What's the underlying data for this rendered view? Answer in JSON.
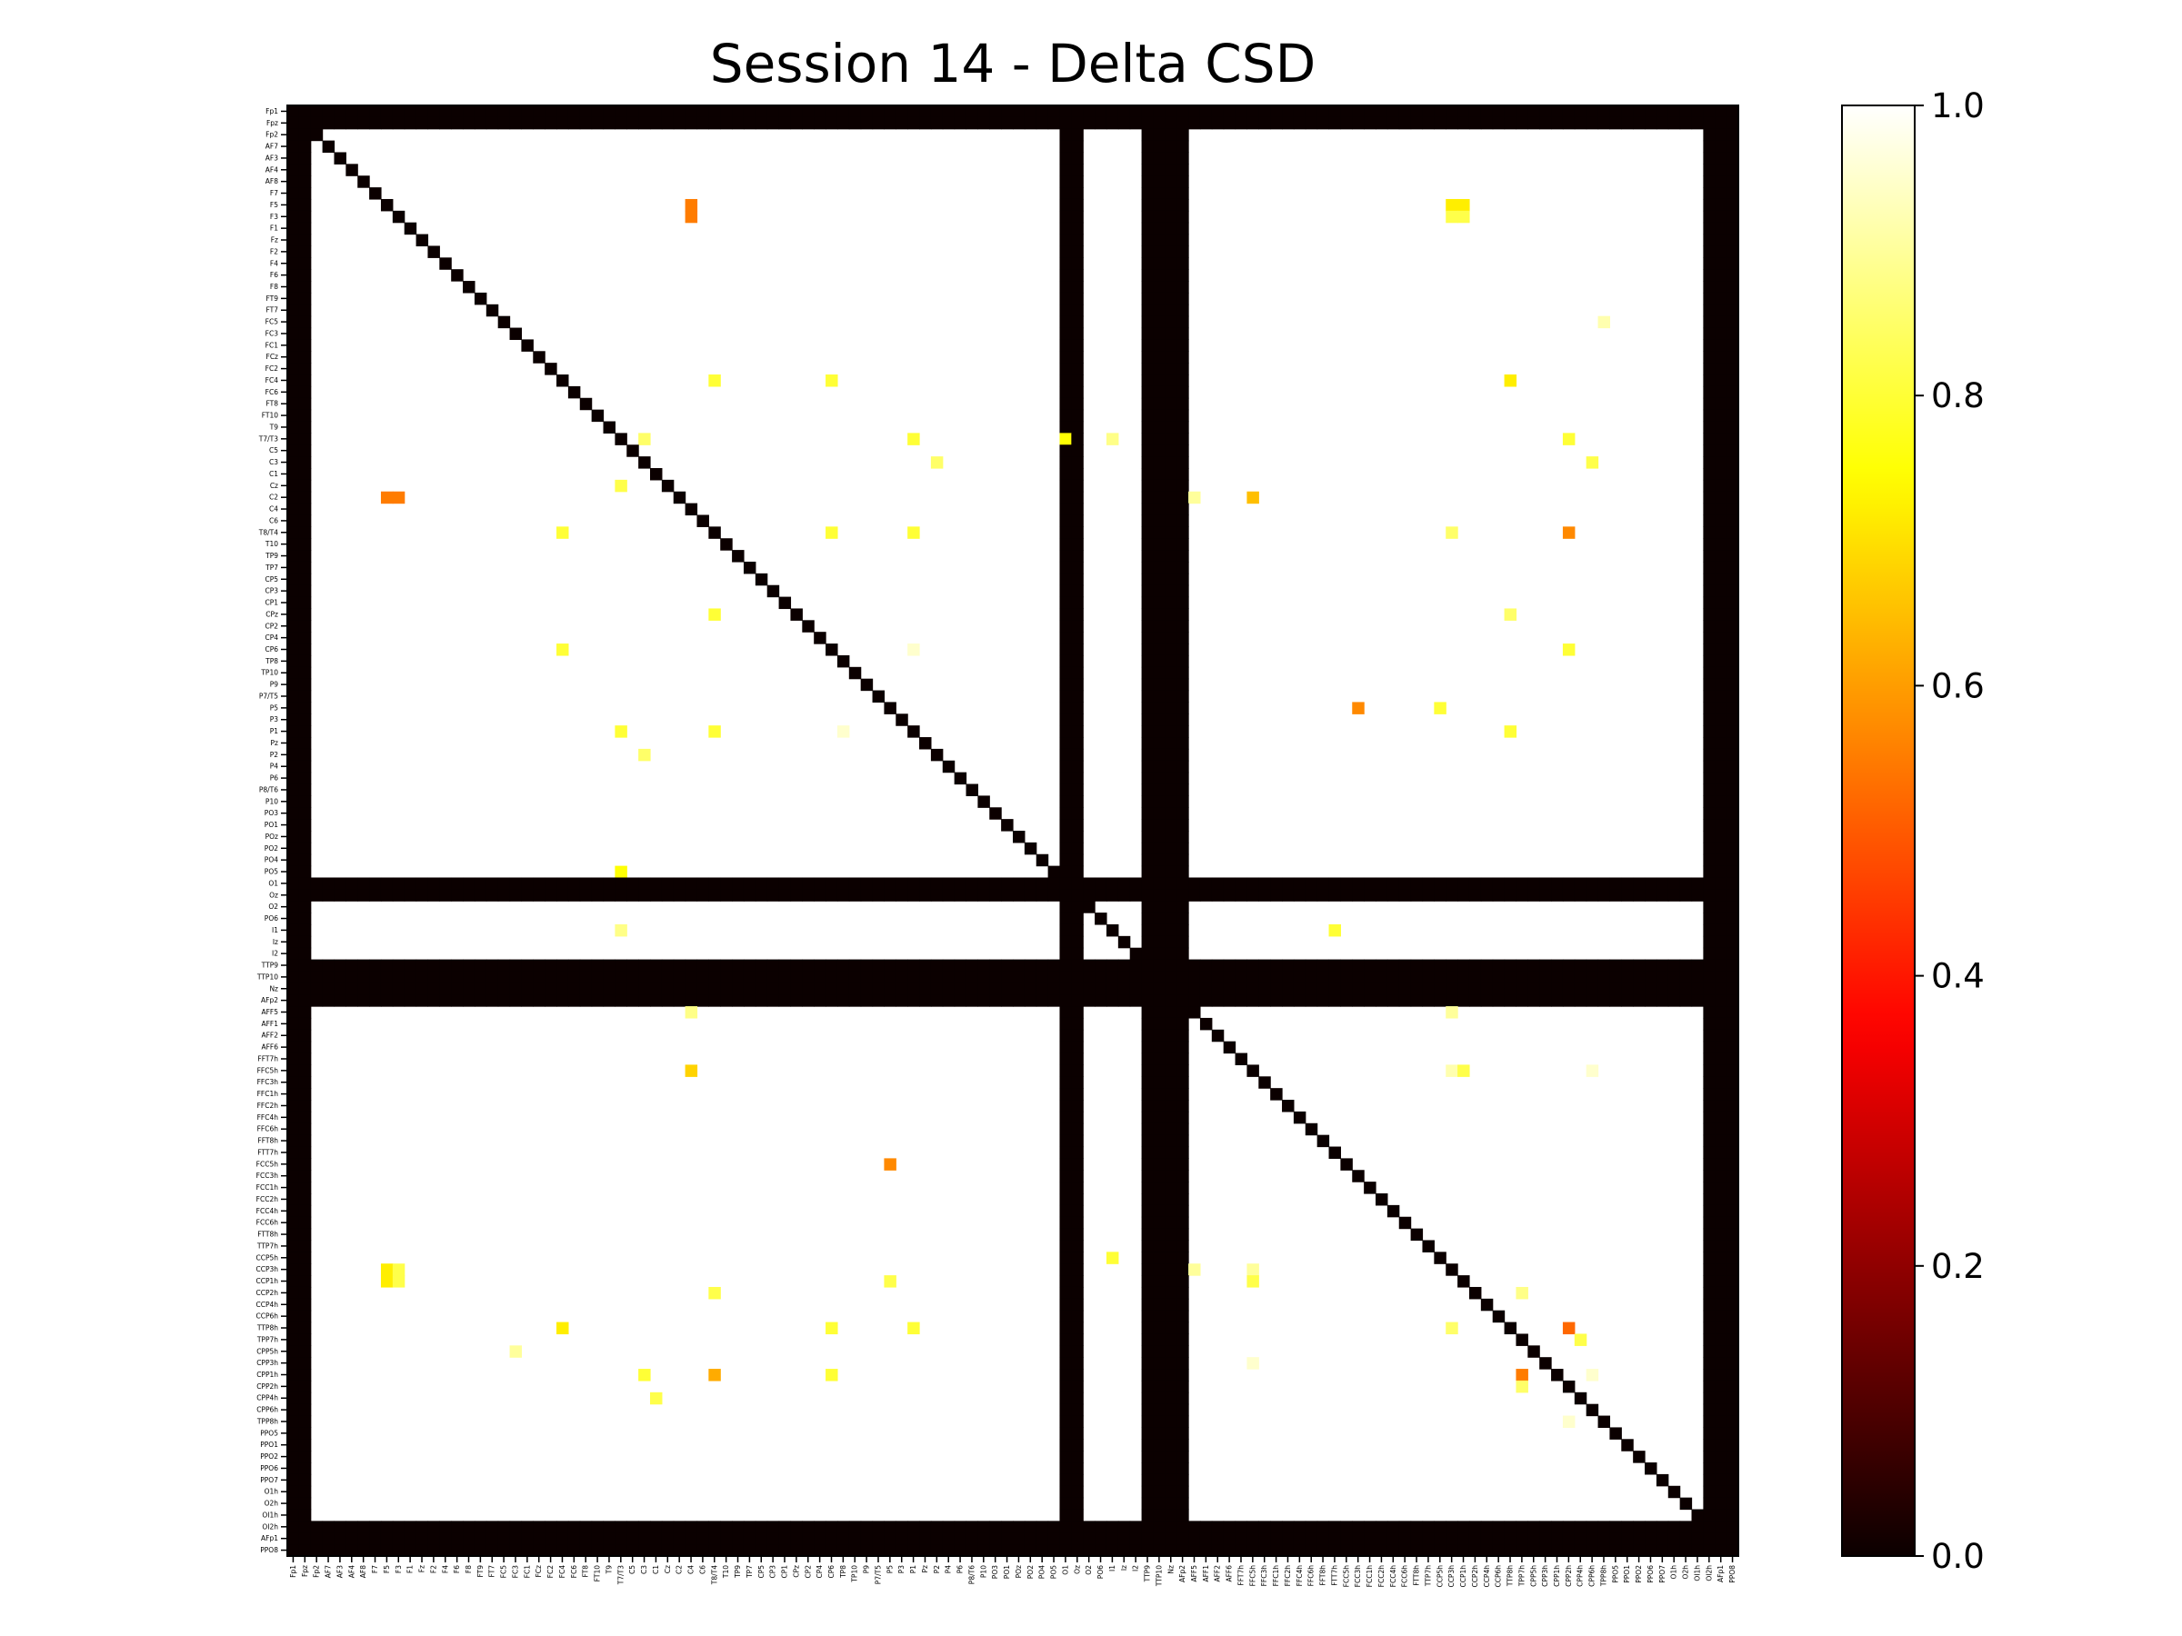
{
  "chart_data": {
    "type": "heatmap",
    "title": "Session 14 - Delta CSD",
    "channels": [
      "Fp1",
      "Fpz",
      "Fp2",
      "AF7",
      "AF3",
      "AF4",
      "AF8",
      "F7",
      "F5",
      "F3",
      "F1",
      "Fz",
      "F2",
      "F4",
      "F6",
      "F8",
      "FT9",
      "FT7",
      "FC5",
      "FC3",
      "FC1",
      "FCz",
      "FC2",
      "FC4",
      "FC6",
      "FT8",
      "FT10",
      "T9",
      "T7/T3",
      "C5",
      "C3",
      "C1",
      "Cz",
      "C2",
      "C4",
      "C6",
      "T8/T4",
      "T10",
      "TP9",
      "TP7",
      "CP5",
      "CP3",
      "CP1",
      "CPz",
      "CP2",
      "CP4",
      "CP6",
      "TP8",
      "TP10",
      "P9",
      "P7/T5",
      "P5",
      "P3",
      "P1",
      "Pz",
      "P2",
      "P4",
      "P6",
      "P8/T6",
      "P10",
      "PO3",
      "PO1",
      "POz",
      "PO2",
      "PO4",
      "PO5",
      "O1",
      "Oz",
      "O2",
      "PO6",
      "I1",
      "Iz",
      "I2",
      "TTP9",
      "TTP10",
      "Nz",
      "AFp2",
      "AFF5",
      "AFF1",
      "AFF2",
      "AFF6",
      "FFT7h",
      "FFC5h",
      "FFC3h",
      "FFC1h",
      "FFC2h",
      "FFC4h",
      "FFC6h",
      "FFT8h",
      "FTT7h",
      "FCC5h",
      "FCC3h",
      "FCC1h",
      "FCC2h",
      "FCC4h",
      "FCC6h",
      "FTT8h",
      "TTP7h",
      "CCP5h",
      "CCP3h",
      "CCP1h",
      "CCP2h",
      "CCP4h",
      "CCP6h",
      "TTP8h",
      "TPP7h",
      "CPP5h",
      "CPP3h",
      "CPP1h",
      "CPP2h",
      "CPP4h",
      "CPP6h",
      "TPP8h",
      "PPO5",
      "PPO1",
      "PPO2",
      "PPO6",
      "PPO7",
      "O1h",
      "O2h",
      "OI1h",
      "OI2h",
      "AFp1",
      "PPO8"
    ],
    "zero_channels": [
      "Fp1",
      "Fpz",
      "O1",
      "Oz",
      "TTP9",
      "TTP10",
      "Nz",
      "AFp2",
      "OI2h",
      "AFp1",
      "PPO8"
    ],
    "diagonal_value": 0.0,
    "default_value": 1.0,
    "cells": [
      {
        "row": "F5",
        "col": "C4",
        "value": 0.55
      },
      {
        "row": "F3",
        "col": "C4",
        "value": 0.55
      },
      {
        "row": "F5",
        "col": "CCP3h",
        "value": 0.72
      },
      {
        "row": "F5",
        "col": "CCP1h",
        "value": 0.72
      },
      {
        "row": "F3",
        "col": "CCP3h",
        "value": 0.82
      },
      {
        "row": "F3",
        "col": "CCP1h",
        "value": 0.82
      },
      {
        "row": "FC5",
        "col": "TPP8h",
        "value": 0.92
      },
      {
        "row": "FC4",
        "col": "T8/T4",
        "value": 0.8
      },
      {
        "row": "FC4",
        "col": "CP6",
        "value": 0.8
      },
      {
        "row": "FC4",
        "col": "TTP8h",
        "value": 0.72
      },
      {
        "row": "T7/T3",
        "col": "C3",
        "value": 0.85
      },
      {
        "row": "T7/T3",
        "col": "P1",
        "value": 0.8
      },
      {
        "row": "T7/T3",
        "col": "O1",
        "value": 0.75
      },
      {
        "row": "T7/T3",
        "col": "I1",
        "value": 0.88
      },
      {
        "row": "T7/T3",
        "col": "CPP2h",
        "value": 0.8
      },
      {
        "row": "C3",
        "col": "P2",
        "value": 0.85
      },
      {
        "row": "C3",
        "col": "CPP6h",
        "value": 0.82
      },
      {
        "row": "Cz",
        "col": "T7/T3",
        "value": 0.82
      },
      {
        "row": "C2",
        "col": "F5",
        "value": 0.55
      },
      {
        "row": "C2",
        "col": "F3",
        "value": 0.55
      },
      {
        "row": "C2",
        "col": "AFF5",
        "value": 0.9
      },
      {
        "row": "C2",
        "col": "FFC5h",
        "value": 0.65
      },
      {
        "row": "T8/T4",
        "col": "FC4",
        "value": 0.8
      },
      {
        "row": "T8/T4",
        "col": "CP6",
        "value": 0.8
      },
      {
        "row": "T8/T4",
        "col": "P1",
        "value": 0.8
      },
      {
        "row": "T8/T4",
        "col": "CCP3h",
        "value": 0.85
      },
      {
        "row": "T8/T4",
        "col": "CPP2h",
        "value": 0.57
      },
      {
        "row": "CPz",
        "col": "T8/T4",
        "value": 0.8
      },
      {
        "row": "CPz",
        "col": "TTP8h",
        "value": 0.85
      },
      {
        "row": "CP6",
        "col": "FC4",
        "value": 0.8
      },
      {
        "row": "CP6",
        "col": "P1",
        "value": 0.95
      },
      {
        "row": "CP6",
        "col": "CPP2h",
        "value": 0.8
      },
      {
        "row": "P5",
        "col": "FCC3h",
        "value": 0.57
      },
      {
        "row": "P5",
        "col": "CCP5h",
        "value": 0.8
      },
      {
        "row": "P1",
        "col": "T7/T3",
        "value": 0.8
      },
      {
        "row": "P1",
        "col": "T8/T4",
        "value": 0.8
      },
      {
        "row": "P1",
        "col": "TP8",
        "value": 0.95
      },
      {
        "row": "P1",
        "col": "TTP8h",
        "value": 0.8
      },
      {
        "row": "P2",
        "col": "C3",
        "value": 0.85
      },
      {
        "row": "PO5",
        "col": "T7/T3",
        "value": 0.75
      },
      {
        "row": "I1",
        "col": "T7/T3",
        "value": 0.88
      },
      {
        "row": "I1",
        "col": "FTT7h",
        "value": 0.8
      },
      {
        "row": "AFF5",
        "col": "C4",
        "value": 0.88
      },
      {
        "row": "AFF5",
        "col": "CCP3h",
        "value": 0.9
      },
      {
        "row": "FFC5h",
        "col": "C4",
        "value": 0.68
      },
      {
        "row": "FFC5h",
        "col": "CCP3h",
        "value": 0.92
      },
      {
        "row": "FFC5h",
        "col": "CCP1h",
        "value": 0.82
      },
      {
        "row": "FFC5h",
        "col": "CPP6h",
        "value": 0.95
      },
      {
        "row": "FCC5h",
        "col": "P5",
        "value": 0.57
      },
      {
        "row": "CCP5h",
        "col": "I1",
        "value": 0.8
      },
      {
        "row": "CCP3h",
        "col": "F5",
        "value": 0.72
      },
      {
        "row": "CCP3h",
        "col": "F3",
        "value": 0.82
      },
      {
        "row": "CCP3h",
        "col": "AFF5",
        "value": 0.9
      },
      {
        "row": "CCP3h",
        "col": "FFC5h",
        "value": 0.9
      },
      {
        "row": "CCP1h",
        "col": "F5",
        "value": 0.72
      },
      {
        "row": "CCP1h",
        "col": "F3",
        "value": 0.82
      },
      {
        "row": "CCP1h",
        "col": "P5",
        "value": 0.82
      },
      {
        "row": "CCP1h",
        "col": "FFC5h",
        "value": 0.82
      },
      {
        "row": "CCP2h",
        "col": "T8/T4",
        "value": 0.82
      },
      {
        "row": "CCP2h",
        "col": "TPP7h",
        "value": 0.88
      },
      {
        "row": "TTP8h",
        "col": "FC4",
        "value": 0.72
      },
      {
        "row": "TTP8h",
        "col": "CP6",
        "value": 0.8
      },
      {
        "row": "TTP8h",
        "col": "P1",
        "value": 0.8
      },
      {
        "row": "TTP8h",
        "col": "CCP3h",
        "value": 0.85
      },
      {
        "row": "TTP8h",
        "col": "CPP2h",
        "value": 0.52
      },
      {
        "row": "TPP7h",
        "col": "CPP4h",
        "value": 0.82
      },
      {
        "row": "CPP5h",
        "col": "FC3",
        "value": 0.9
      },
      {
        "row": "CPP3h",
        "col": "FFC5h",
        "value": 0.95
      },
      {
        "row": "CPP1h",
        "col": "C3",
        "value": 0.8
      },
      {
        "row": "CPP1h",
        "col": "T8/T4",
        "value": 0.62
      },
      {
        "row": "CPP1h",
        "col": "CP6",
        "value": 0.8
      },
      {
        "row": "CPP1h",
        "col": "TPP7h",
        "value": 0.55
      },
      {
        "row": "CPP1h",
        "col": "CPP6h",
        "value": 0.95
      },
      {
        "row": "CPP2h",
        "col": "TPP7h",
        "value": 0.85
      },
      {
        "row": "CPP4h",
        "col": "C1",
        "value": 0.82
      },
      {
        "row": "TPP8h",
        "col": "CPP2h",
        "value": 0.95
      }
    ],
    "colorbar": {
      "colormap": "hot",
      "range": [
        0.0,
        1.0
      ],
      "ticks": [
        "0.0",
        "0.2",
        "0.4",
        "0.6",
        "0.8",
        "1.0"
      ]
    },
    "grid": false,
    "legend": "none"
  }
}
